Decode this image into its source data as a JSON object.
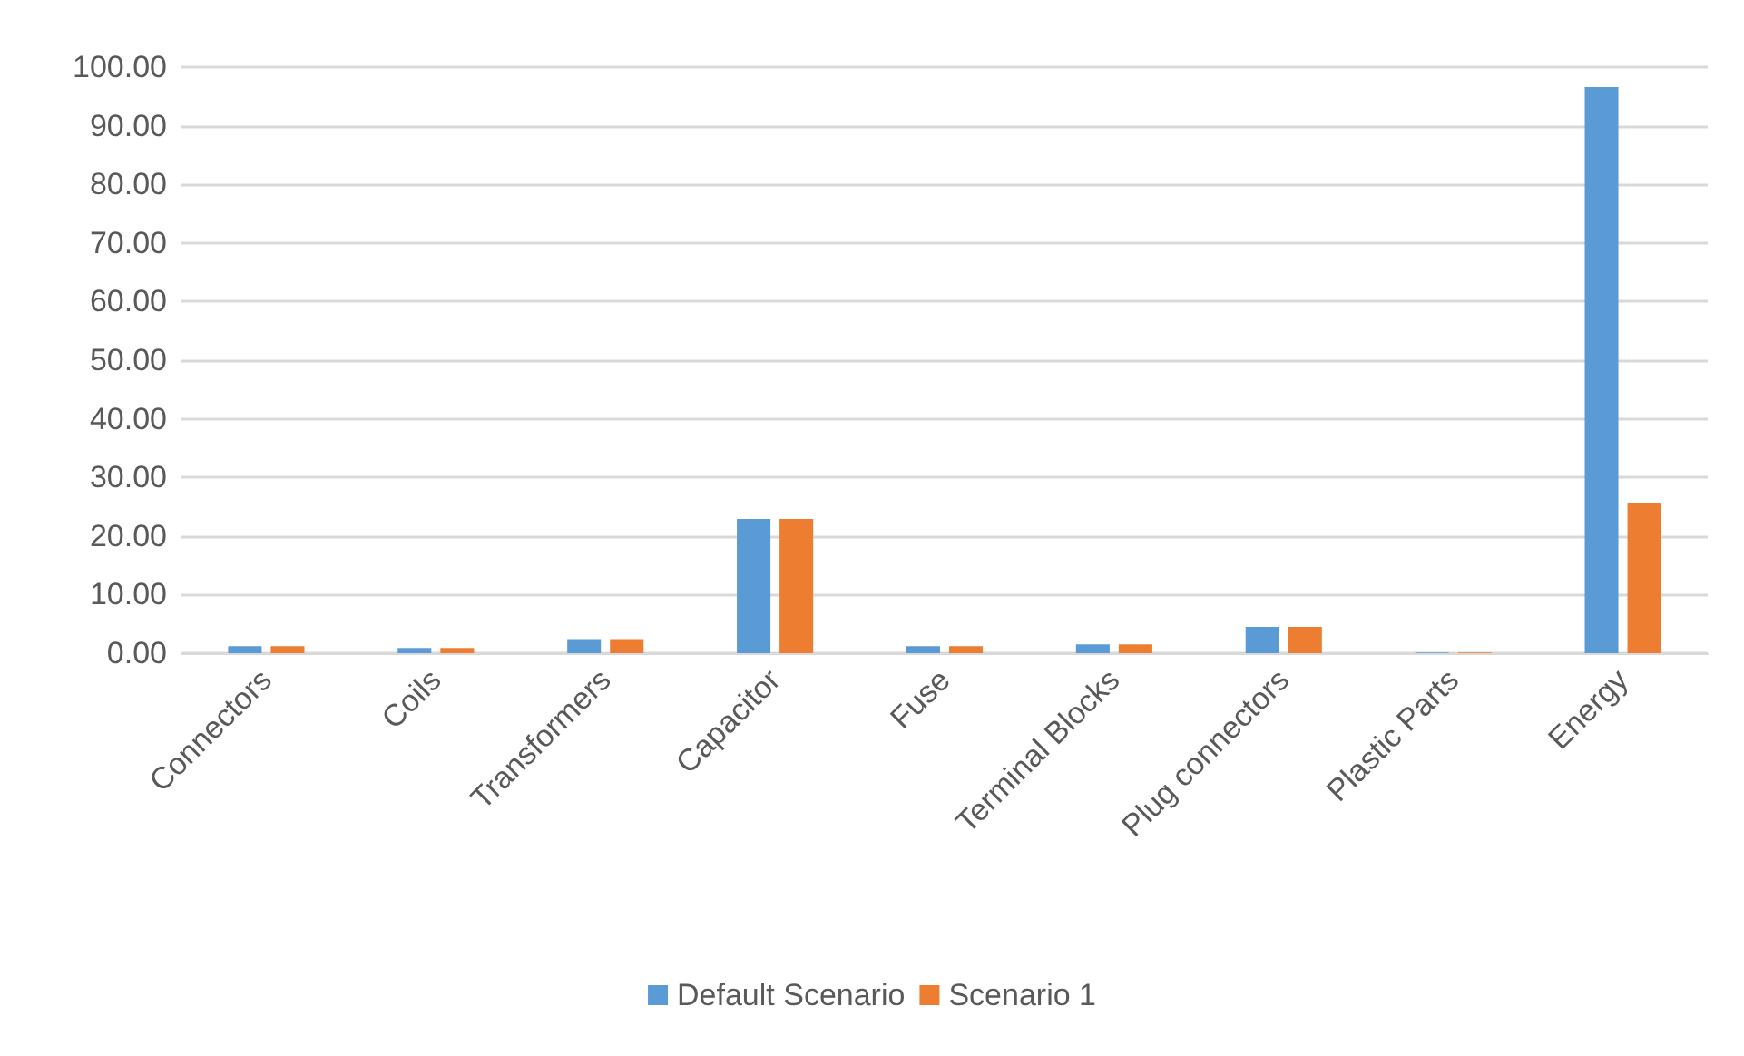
{
  "chart_data": {
    "type": "bar",
    "categories": [
      "Connectors",
      "Coils",
      "Transformers",
      "Capacitor",
      "Fuse",
      "Terminal Blocks",
      "Plug connectors",
      "Plastic Parts",
      "Energy"
    ],
    "series": [
      {
        "name": "Default Scenario",
        "color": "#5b9bd5",
        "values": [
          1.2,
          0.9,
          2.4,
          22.9,
          1.2,
          1.5,
          4.5,
          0.1,
          96.6
        ]
      },
      {
        "name": "Scenario 1",
        "color": "#ed7d31",
        "values": [
          1.2,
          0.9,
          2.4,
          22.9,
          1.2,
          1.5,
          4.5,
          0.1,
          25.7
        ]
      }
    ],
    "ylim": [
      0,
      100
    ],
    "yticks": [
      {
        "value": 0,
        "label": "0.00"
      },
      {
        "value": 10,
        "label": "10.00"
      },
      {
        "value": 20,
        "label": "20.00"
      },
      {
        "value": 30,
        "label": "30.00"
      },
      {
        "value": 40,
        "label": "40.00"
      },
      {
        "value": 50,
        "label": "50.00"
      },
      {
        "value": 60,
        "label": "60.00"
      },
      {
        "value": 70,
        "label": "70.00"
      },
      {
        "value": 80,
        "label": "80.00"
      },
      {
        "value": 90,
        "label": "90.00"
      },
      {
        "value": 100,
        "label": "100.00"
      }
    ],
    "grid": "y",
    "legend": "bottom"
  }
}
